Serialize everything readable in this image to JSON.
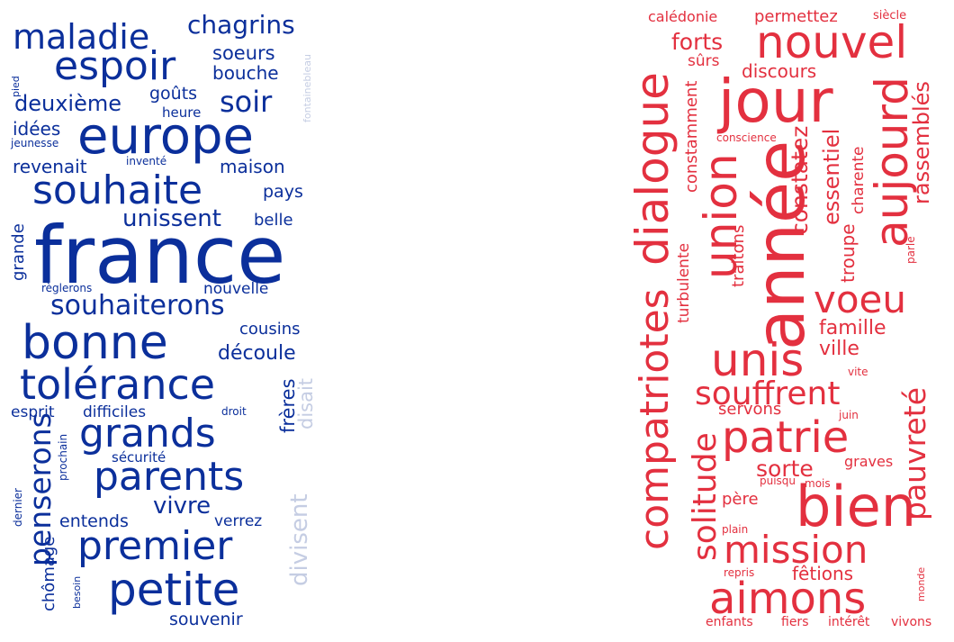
{
  "colors": {
    "blue": "#0b2f9b",
    "blue_light": "#c5cde3",
    "red": "#e3303f",
    "background": "#ffffff"
  },
  "clouds": {
    "left": {
      "words": [
        "maladie",
        "chagrins",
        "espoir",
        "soeurs",
        "bouche",
        "pied",
        "fontainebleau",
        "deuxième",
        "goûts",
        "soir",
        "heure",
        "idées",
        "jeunesse",
        "europe",
        "revenait",
        "inventé",
        "maison",
        "souhaite",
        "pays",
        "unissent",
        "belle",
        "grande",
        "france",
        "règlerons",
        "nouvelle",
        "souhaiterons",
        "bonne",
        "cousins",
        "découle",
        "tolérance",
        "frères",
        "disait",
        "esprit",
        "difficiles",
        "droit",
        "grands",
        "penserons",
        "prochain",
        "sécurité",
        "parents",
        "vivre",
        "dernier",
        "entends",
        "verrez",
        "chômage",
        "premier",
        "divisent",
        "besoin",
        "petite",
        "souvenir"
      ]
    },
    "right": {
      "words": [
        "calédonie",
        "permettez",
        "siècle",
        "nouvel",
        "forts",
        "sûrs",
        "discours",
        "jour",
        "conscience",
        "dialogue",
        "constamment",
        "année",
        "union",
        "constatez",
        "aujourd",
        "charente",
        "rassemblés",
        "essentiel",
        "troupe",
        "turbulente",
        "traitons",
        "parle",
        "compatriotes",
        "voeu",
        "famille",
        "unis",
        "ville",
        "vite",
        "souffrent",
        "servons",
        "juin",
        "pauvreté",
        "patrie",
        "solitude",
        "sorte",
        "graves",
        "puisqu",
        "mois",
        "père",
        "bien",
        "plain",
        "mission",
        "repris",
        "fêtions",
        "aimons",
        "monde",
        "enfants",
        "fiers",
        "intérêt",
        "vivons"
      ]
    }
  }
}
